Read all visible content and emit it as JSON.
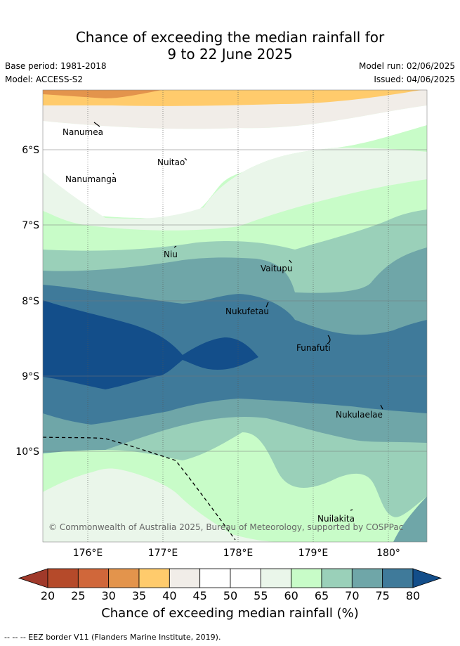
{
  "header": {
    "title_line1": "Chance of exceeding the median rainfall for",
    "title_line2": "9 to 22 June 2025",
    "base_period": "Base period: 1981-2018",
    "model": "Model: ACCESS-S2",
    "model_run": "Model run: 02/06/2025",
    "issued": "Issued: 04/06/2025"
  },
  "map": {
    "lat_labels": [
      "6°S",
      "7°S",
      "8°S",
      "9°S",
      "10°S"
    ],
    "lon_labels": [
      "176°E",
      "177°E",
      "178°E",
      "179°E",
      "180°"
    ],
    "places": [
      "Nanumea",
      "Nuitao",
      "Nanumanga",
      "Niu",
      "Vaitupu",
      "Nukufetau",
      "Funafuti",
      "Nukulaelae",
      "Nuilakita"
    ],
    "copyright": "© Commonwealth of Australia 2025, Bureau of Meteorology, supported by COSPPac"
  },
  "colorbar": {
    "ticks": [
      "20",
      "25",
      "30",
      "35",
      "40",
      "45",
      "50",
      "55",
      "60",
      "65",
      "70",
      "75",
      "80"
    ],
    "colors": [
      "#a0392a",
      "#b54a2a",
      "#d0673a",
      "#e3944c",
      "#ffcb6c",
      "#f1ede8",
      "#ffffff",
      "#ffffff",
      "#eaf6ea",
      "#c8fcc8",
      "#9ad0b9",
      "#6fa6a8",
      "#3f7a9a",
      "#134e8a"
    ],
    "title": "Chance of exceeding median rainfall (%)"
  },
  "footer": {
    "eez_note": "--  --  -- EEZ border V11 (Flanders Marine Institute, 2019)."
  }
}
